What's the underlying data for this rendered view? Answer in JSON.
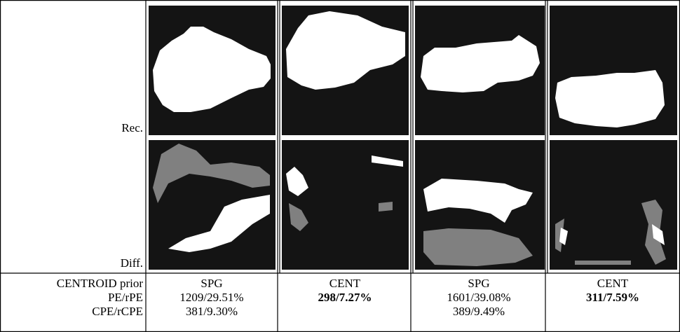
{
  "rows": {
    "image_labels": [
      "Rec.",
      "Diff."
    ],
    "metric_labels": [
      "CENTROID prior",
      "PE/rPE",
      "CPE/rCPE"
    ]
  },
  "columns": [
    {
      "prior": "SPG",
      "pe": "1209/29.51%",
      "cpe": "381/9.30%"
    },
    {
      "prior": "CENT",
      "pe": "298/7.27%",
      "bold": true
    },
    {
      "prior": "SPG",
      "pe": "1601/39.08%",
      "cpe": "389/9.49%"
    },
    {
      "prior": "CENT",
      "pe": "311/7.59%",
      "bold": true
    }
  ]
}
